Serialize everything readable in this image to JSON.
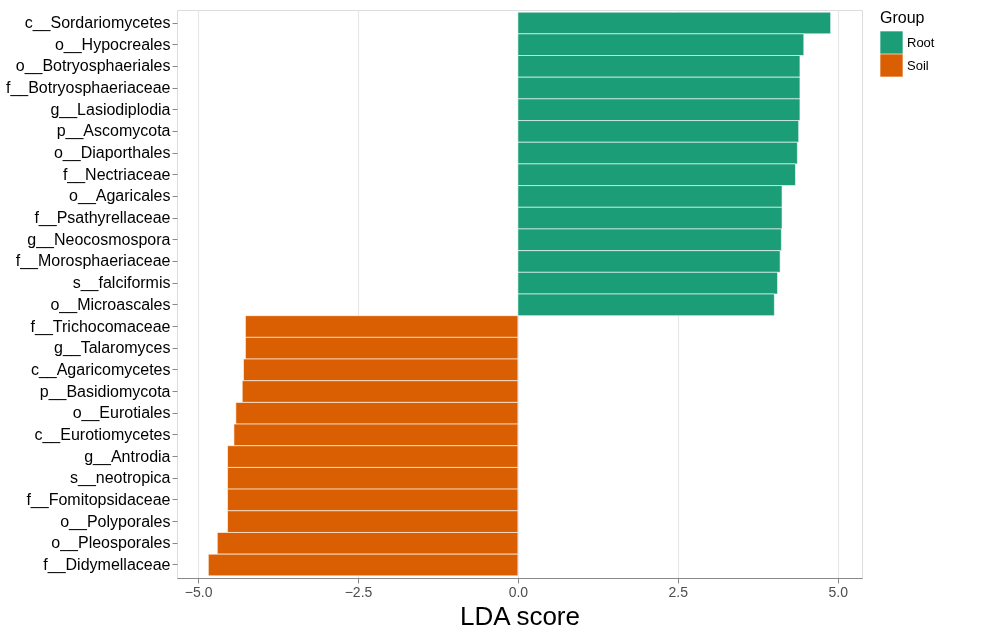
{
  "chart_data": {
    "type": "bar",
    "orientation": "horizontal",
    "xlabel": "LDA score",
    "legend_title": "Group",
    "legend": "right",
    "grid": "x",
    "categories": [
      "c__Sordariomycetes",
      "o__Hypocreales",
      "o__Botryosphaeriales",
      "f__Botryosphaeriaceae",
      "g__Lasiodiplodia",
      "p__Ascomycota",
      "o__Diaporthales",
      "f__Nectriaceae",
      "o__Agaricales",
      "f__Psathyrellaceae",
      "g__Neocosmospora",
      "f__Morosphaeriaceae",
      "s__falciformis",
      "o__Microascales",
      "f__Trichocomaceae",
      "g__Talaromyces",
      "c__Agaricomycetes",
      "p__Basidiomycota",
      "o__Eurotiales",
      "c__Eurotiomycetes",
      "g__Antrodia",
      "s__neotropica",
      "f__Fomitopsidaceae",
      "o__Polyporales",
      "o__Pleosporales",
      "f__Didymellaceae"
    ],
    "series": [
      {
        "name": "Root",
        "color": "#1b9e77",
        "values": [
          4.89,
          4.47,
          4.41,
          4.41,
          4.41,
          4.39,
          4.37,
          4.34,
          4.13,
          4.13,
          4.12,
          4.1,
          4.06,
          4.01,
          null,
          null,
          null,
          null,
          null,
          null,
          null,
          null,
          null,
          null,
          null,
          null
        ]
      },
      {
        "name": "Soil",
        "color": "#d95f02",
        "values": [
          null,
          null,
          null,
          null,
          null,
          null,
          null,
          null,
          null,
          null,
          null,
          null,
          null,
          null,
          -4.26,
          -4.26,
          -4.29,
          -4.31,
          -4.41,
          -4.44,
          -4.54,
          -4.54,
          -4.54,
          -4.54,
          -4.7,
          -4.84
        ]
      }
    ],
    "xlim": [
      -5.33,
      5.38
    ],
    "xticks": [
      {
        "value": -5,
        "label": "−5.0"
      },
      {
        "value": -2.5,
        "label": "−2.5"
      },
      {
        "value": 0,
        "label": "0.0"
      },
      {
        "value": 2.5,
        "label": "2.5"
      },
      {
        "value": 5,
        "label": "5.0"
      }
    ]
  }
}
